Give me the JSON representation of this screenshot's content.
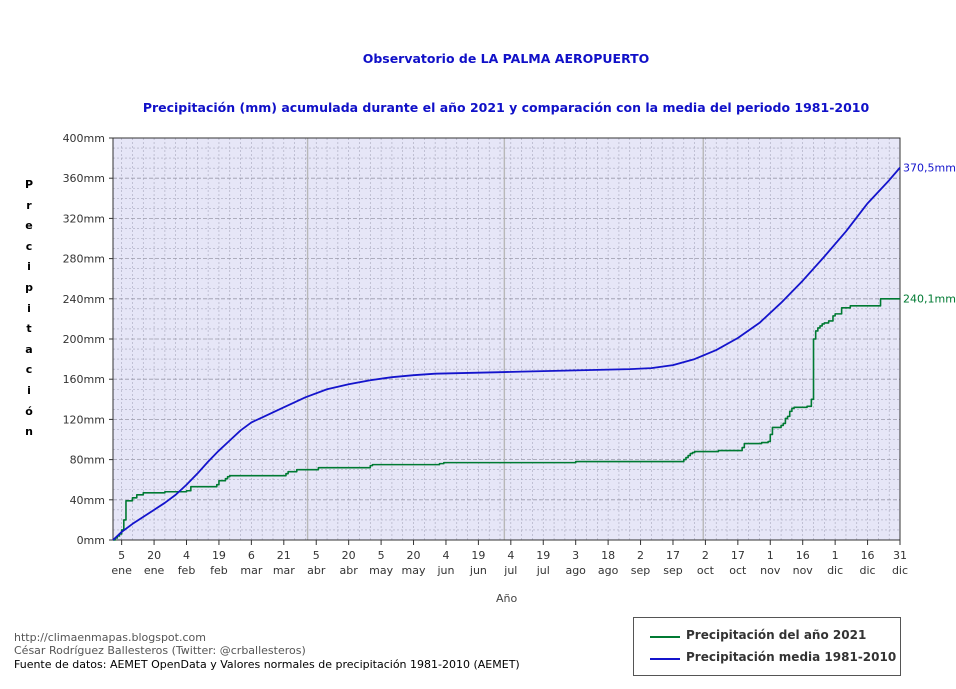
{
  "chart_data": {
    "type": "line",
    "title": "Observatorio de LA PALMA AEROPUERTO",
    "subtitle": "Precipitación (mm) acumulada durante el año 2021 y comparación con la media del periodo 1981-2010",
    "xlabel": "Año",
    "ylabel": "Precipitación",
    "ylim": [
      0,
      400
    ],
    "xlim": [
      1,
      365
    ],
    "yticks": [
      0,
      40,
      80,
      120,
      160,
      200,
      240,
      280,
      320,
      360,
      400
    ],
    "ytick_labels": [
      "0mm",
      "40mm",
      "80mm",
      "120mm",
      "160mm",
      "200mm",
      "240mm",
      "280mm",
      "320mm",
      "360mm",
      "400mm"
    ],
    "xticks": [
      {
        "day": 5,
        "num": "5",
        "month": "ene"
      },
      {
        "day": 20,
        "num": "20",
        "month": "ene"
      },
      {
        "day": 35,
        "num": "4",
        "month": "feb"
      },
      {
        "day": 50,
        "num": "19",
        "month": "feb"
      },
      {
        "day": 65,
        "num": "6",
        "month": "mar"
      },
      {
        "day": 80,
        "num": "21",
        "month": "mar"
      },
      {
        "day": 95,
        "num": "5",
        "month": "abr"
      },
      {
        "day": 110,
        "num": "20",
        "month": "abr"
      },
      {
        "day": 125,
        "num": "5",
        "month": "may"
      },
      {
        "day": 140,
        "num": "20",
        "month": "may"
      },
      {
        "day": 155,
        "num": "4",
        "month": "jun"
      },
      {
        "day": 170,
        "num": "19",
        "month": "jun"
      },
      {
        "day": 185,
        "num": "4",
        "month": "jul"
      },
      {
        "day": 200,
        "num": "19",
        "month": "jul"
      },
      {
        "day": 215,
        "num": "3",
        "month": "ago"
      },
      {
        "day": 230,
        "num": "18",
        "month": "ago"
      },
      {
        "day": 245,
        "num": "2",
        "month": "sep"
      },
      {
        "day": 260,
        "num": "17",
        "month": "sep"
      },
      {
        "day": 275,
        "num": "2",
        "month": "oct"
      },
      {
        "day": 290,
        "num": "17",
        "month": "oct"
      },
      {
        "day": 305,
        "num": "1",
        "month": "nov"
      },
      {
        "day": 320,
        "num": "16",
        "month": "nov"
      },
      {
        "day": 335,
        "num": "1",
        "month": "dic"
      },
      {
        "day": 350,
        "num": "16",
        "month": "dic"
      },
      {
        "day": 365,
        "num": "31",
        "month": "dic"
      }
    ],
    "series": [
      {
        "name": "Precipitación del año 2021",
        "color": "#007a33",
        "step": true,
        "end_label": "240,1mm",
        "x": [
          1,
          2,
          3,
          4,
          5,
          6,
          7,
          10,
          12,
          15,
          25,
          35,
          37,
          49,
          50,
          53,
          54,
          55,
          56,
          81,
          82,
          86,
          88,
          96,
          117,
          120,
          121,
          152,
          154,
          214,
          215,
          263,
          265,
          266,
          267,
          268,
          269,
          270,
          271,
          281,
          290,
          291,
          292,
          293,
          301,
          303,
          304,
          305,
          306,
          310,
          311,
          312,
          313,
          314,
          315,
          316,
          317,
          318,
          322,
          324,
          325,
          326,
          327,
          328,
          329,
          330,
          332,
          334,
          335,
          338,
          342,
          355,
          356,
          365
        ],
        "values": [
          0,
          2,
          4,
          6,
          10,
          20,
          39,
          42,
          45,
          47,
          48,
          49,
          53,
          55,
          59,
          61,
          63,
          64,
          64,
          66,
          68,
          70,
          70,
          72,
          72,
          74,
          75,
          76,
          77,
          77,
          78,
          78,
          80,
          82,
          84,
          86,
          87,
          88,
          88,
          89,
          89,
          89,
          92,
          96,
          97,
          97,
          98,
          105,
          112,
          114,
          116,
          121,
          123,
          128,
          131,
          132,
          132,
          132,
          133,
          140,
          200,
          208,
          211,
          213,
          215,
          216,
          218,
          223,
          225,
          231,
          233,
          233,
          240,
          240.1
        ]
      },
      {
        "name": "Precipitación media 1981-2010",
        "color": "#1414cc",
        "step": false,
        "end_label": "370,5mm",
        "x": [
          1,
          2,
          5,
          10,
          15,
          20,
          25,
          30,
          35,
          40,
          45,
          50,
          55,
          60,
          65,
          70,
          80,
          90,
          100,
          110,
          120,
          130,
          140,
          150,
          160,
          170,
          180,
          190,
          200,
          210,
          220,
          230,
          240,
          250,
          260,
          270,
          280,
          290,
          300,
          310,
          320,
          330,
          340,
          350,
          360,
          365
        ],
        "values": [
          0,
          2,
          8,
          16,
          23,
          30,
          37,
          45,
          55,
          66,
          78,
          89,
          99,
          109,
          117,
          122,
          132,
          142,
          150,
          155,
          159,
          162,
          164,
          165.5,
          166,
          166.5,
          167,
          167.5,
          168,
          168.5,
          169,
          169.5,
          170,
          171,
          174,
          180,
          189,
          201,
          216,
          236,
          258,
          282,
          307,
          335,
          358,
          370.5
        ]
      }
    ]
  },
  "credits": {
    "blog": "http://climaenmapas.blogspot.com",
    "author": "César Rodríguez Ballesteros (Twitter: @crballesteros)",
    "source": "Fuente de datos: AEMET OpenData y Valores normales de precipitación 1981-2010 (AEMET)"
  },
  "legend": {
    "items": [
      {
        "label": "Precipitación del año 2021",
        "color": "#007a33"
      },
      {
        "label": "Precipitación media 1981-2010",
        "color": "#1414cc"
      }
    ]
  }
}
